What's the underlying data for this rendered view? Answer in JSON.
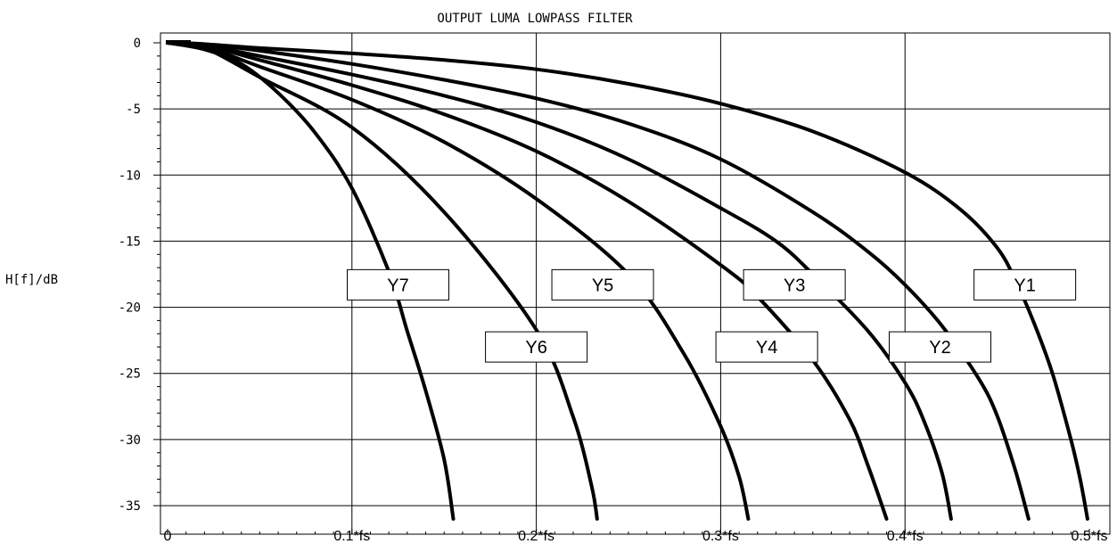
{
  "chart_data": {
    "type": "line",
    "title": "OUTPUT LUMA LOWPASS FILTER",
    "xlabel": "",
    "ylabel": "H[f]/dB",
    "xlim": [
      0,
      0.5
    ],
    "ylim": [
      -36,
      1
    ],
    "x_ticks": [
      {
        "value": 0,
        "label": "0"
      },
      {
        "value": 0.1,
        "label": "0.1*fs"
      },
      {
        "value": 0.2,
        "label": "0.2*fs"
      },
      {
        "value": 0.3,
        "label": "0.3*fs"
      },
      {
        "value": 0.4,
        "label": "0.4*fs"
      },
      {
        "value": 0.5,
        "label": "0.5*fs"
      }
    ],
    "y_ticks": [
      {
        "value": 0,
        "label": "0"
      },
      {
        "value": -5,
        "label": "-5"
      },
      {
        "value": -10,
        "label": "-10"
      },
      {
        "value": -15,
        "label": "-15"
      },
      {
        "value": -20,
        "label": "-20"
      },
      {
        "value": -25,
        "label": "-25"
      },
      {
        "value": -30,
        "label": "-30"
      },
      {
        "value": -35,
        "label": "-35"
      }
    ],
    "grid": true,
    "series": [
      {
        "name": "Y1",
        "label_pos": [
          0.465,
          -18.3
        ],
        "x": [
          0,
          0.02,
          0.05,
          0.1,
          0.15,
          0.2,
          0.25,
          0.3,
          0.35,
          0.4,
          0.43,
          0.45,
          0.46,
          0.47,
          0.48,
          0.49,
          0.495,
          0.499
        ],
        "y": [
          0,
          -0.1,
          -0.4,
          -0.8,
          -1.3,
          -2.0,
          -3.1,
          -4.6,
          -6.7,
          -9.8,
          -12.6,
          -15.5,
          -18.0,
          -21.2,
          -25.0,
          -30.0,
          -33.0,
          -36.0
        ]
      },
      {
        "name": "Y2",
        "label_pos": [
          0.419,
          -23.0
        ],
        "x": [
          0,
          0.02,
          0.05,
          0.1,
          0.15,
          0.2,
          0.25,
          0.3,
          0.35,
          0.38,
          0.4,
          0.42,
          0.44,
          0.45,
          0.46,
          0.467
        ],
        "y": [
          0,
          -0.1,
          -0.6,
          -1.6,
          -2.8,
          -4.2,
          -6.1,
          -8.8,
          -12.8,
          -15.8,
          -18.3,
          -21.4,
          -25.4,
          -28.2,
          -32.4,
          -36.0
        ]
      },
      {
        "name": "Y3",
        "label_pos": [
          0.34,
          -18.3
        ],
        "x": [
          0,
          0.02,
          0.05,
          0.1,
          0.15,
          0.2,
          0.25,
          0.3,
          0.33,
          0.35,
          0.38,
          0.4,
          0.41,
          0.42,
          0.425
        ],
        "y": [
          0,
          -0.2,
          -1.0,
          -2.4,
          -4.0,
          -6.0,
          -8.8,
          -12.5,
          -15.0,
          -17.5,
          -21.8,
          -25.7,
          -28.5,
          -32.5,
          -36.0
        ]
      },
      {
        "name": "Y4",
        "label_pos": [
          0.325,
          -23.0
        ],
        "x": [
          0,
          0.02,
          0.05,
          0.1,
          0.15,
          0.2,
          0.25,
          0.3,
          0.32,
          0.35,
          0.37,
          0.38,
          0.39
        ],
        "y": [
          0,
          -0.2,
          -1.3,
          -3.2,
          -5.4,
          -8.2,
          -12.0,
          -16.8,
          -19.2,
          -24.0,
          -28.5,
          -32.0,
          -36.0
        ]
      },
      {
        "name": "Y5",
        "label_pos": [
          0.236,
          -18.3
        ],
        "x": [
          0,
          0.02,
          0.05,
          0.1,
          0.15,
          0.2,
          0.25,
          0.28,
          0.3,
          0.31,
          0.315
        ],
        "y": [
          0,
          -0.3,
          -1.8,
          -4.3,
          -7.5,
          -11.8,
          -17.5,
          -23.5,
          -29.0,
          -32.8,
          -36.0
        ]
      },
      {
        "name": "Y6",
        "label_pos": [
          0.2,
          -23.0
        ],
        "x": [
          0,
          0.02,
          0.05,
          0.1,
          0.15,
          0.2,
          0.22,
          0.23,
          0.233
        ],
        "y": [
          0,
          -0.4,
          -2.6,
          -6.4,
          -12.8,
          -21.7,
          -28.3,
          -33.5,
          -36.0
        ]
      },
      {
        "name": "Y7",
        "label_pos": [
          0.125,
          -18.3
        ],
        "x": [
          0,
          0.02,
          0.04,
          0.06,
          0.08,
          0.1,
          0.12,
          0.13,
          0.14,
          0.15,
          0.155
        ],
        "y": [
          0,
          -0.5,
          -1.6,
          -3.8,
          -6.8,
          -11.0,
          -17.3,
          -21.8,
          -26.3,
          -31.5,
          -36.0
        ]
      }
    ]
  }
}
